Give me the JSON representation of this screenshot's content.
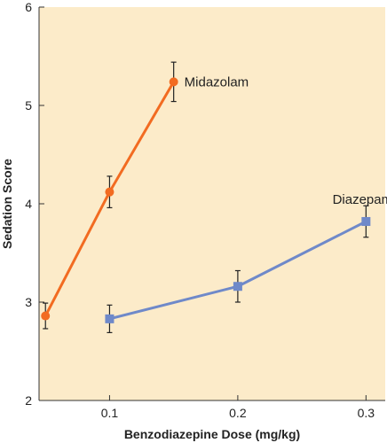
{
  "chart_data": {
    "type": "line",
    "xlabel": "Benzodiazepine Dose (mg/kg)",
    "ylabel": "Sedation Score",
    "xlim": [
      0.045,
      0.315
    ],
    "ylim": [
      2,
      6
    ],
    "xticks": [
      "0.1",
      "0.2",
      "0.3"
    ],
    "yticks": [
      "2",
      "3",
      "4",
      "5",
      "6"
    ],
    "grid": false,
    "plot_background": "#fcebc9",
    "series": [
      {
        "name": "Midazolam",
        "color": "#f26b21",
        "marker": "circle",
        "points": [
          {
            "x": 0.05,
            "y": 2.86,
            "err": 0.13
          },
          {
            "x": 0.1,
            "y": 4.12,
            "err": 0.16
          },
          {
            "x": 0.15,
            "y": 5.24,
            "err": 0.2
          }
        ]
      },
      {
        "name": "Diazepam",
        "color": "#6f89c9",
        "marker": "square",
        "points": [
          {
            "x": 0.1,
            "y": 2.83,
            "err": 0.14
          },
          {
            "x": 0.2,
            "y": 3.16,
            "err": 0.16
          },
          {
            "x": 0.3,
            "y": 3.82,
            "err": 0.16
          }
        ]
      }
    ]
  }
}
